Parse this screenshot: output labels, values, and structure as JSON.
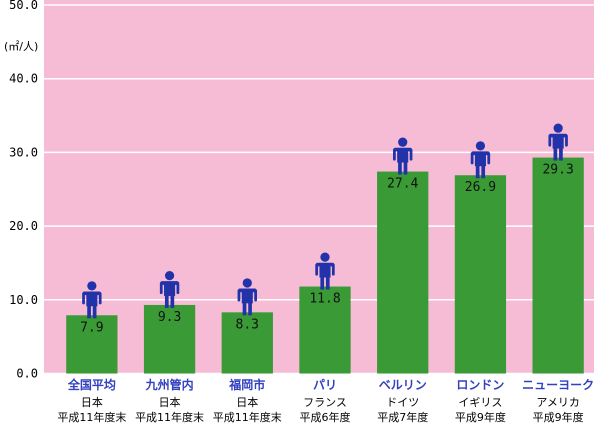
{
  "colors": {
    "plot_bg": "#f7bcd5",
    "gridline": "#ffffff",
    "bar": "#3a9a36",
    "person": "#2233aa",
    "city_label": "#3340c0"
  },
  "chart_data": {
    "type": "bar",
    "unit_label": "(㎡/人)",
    "ylim": [
      0,
      50
    ],
    "yticks": [
      "0.0",
      "10.0",
      "20.0",
      "30.0",
      "40.0",
      "50.0"
    ],
    "grid": true,
    "categories": [
      "全国平均",
      "九州管内",
      "福岡市",
      "パリ",
      "ベルリン",
      "ロンドン",
      "ニューヨーク"
    ],
    "countries": [
      "日本",
      "日本",
      "日本",
      "フランス",
      "ドイツ",
      "イギリス",
      "アメリカ"
    ],
    "periods": [
      "平成11年度末",
      "平成11年度末",
      "平成11年度末",
      "平成6年度",
      "平成7年度",
      "平成9年度",
      "平成9年度"
    ],
    "values": [
      7.9,
      9.3,
      8.3,
      11.8,
      27.4,
      26.9,
      29.3
    ],
    "value_labels": [
      "7.9",
      "9.3",
      "8.3",
      "11.8",
      "27.4",
      "26.9",
      "29.3"
    ],
    "marker_icon": "person-icon"
  }
}
